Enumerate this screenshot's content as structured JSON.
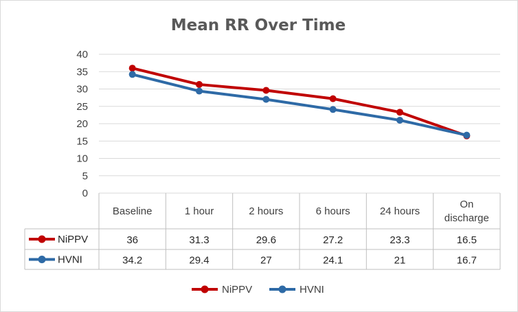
{
  "chart_data": {
    "type": "line",
    "title": "Mean RR Over Time",
    "categories": [
      "Baseline",
      "1 hour",
      "2 hours",
      "6 hours",
      "24 hours",
      "On discharge"
    ],
    "category_lines": [
      [
        "Baseline"
      ],
      [
        "1 hour"
      ],
      [
        "2 hours"
      ],
      [
        "6 hours"
      ],
      [
        "24 hours"
      ],
      [
        "On",
        "discharge"
      ]
    ],
    "y_ticks": [
      "0",
      "5",
      "10",
      "15",
      "20",
      "25",
      "30",
      "35",
      "40"
    ],
    "ylim": [
      0,
      40
    ],
    "grid": true,
    "legend_position": "bottom",
    "data_table": true,
    "series": [
      {
        "name": "NiPPV",
        "color": "#c00000",
        "values": [
          36,
          31.3,
          29.6,
          27.2,
          23.3,
          16.5
        ],
        "labels": [
          "36",
          "31.3",
          "29.6",
          "27.2",
          "23.3",
          "16.5"
        ]
      },
      {
        "name": "HVNI",
        "color": "#2e6aa6",
        "values": [
          34.2,
          29.4,
          27,
          24.1,
          21,
          16.7
        ],
        "labels": [
          "34.2",
          "29.4",
          "27",
          "24.1",
          "21",
          "16.7"
        ]
      }
    ]
  }
}
